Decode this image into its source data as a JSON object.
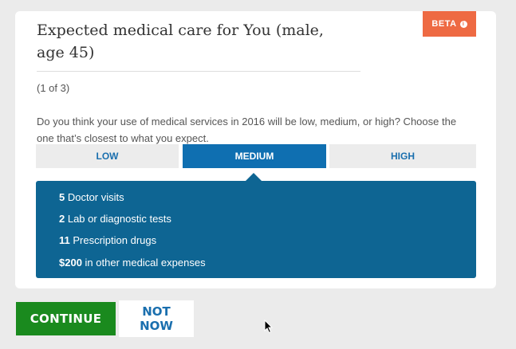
{
  "card": {
    "badge": "BETA",
    "badge_color": "#ee6a43",
    "title": "Expected medical care for You (male, age 45)",
    "step": "(1 of 3)",
    "question": "Do you think your use of medical services in 2016 will be low, medium, or high? Choose the one that’s closest to what you expect.",
    "options": [
      {
        "label": "LOW",
        "selected": false
      },
      {
        "label": "MEDIUM",
        "selected": true
      },
      {
        "label": "HIGH",
        "selected": false
      }
    ],
    "details": [
      {
        "value": "5",
        "text": " Doctor visits"
      },
      {
        "value": "2",
        "text": " Lab or diagnostic tests"
      },
      {
        "value": "11",
        "text": " Prescription drugs"
      },
      {
        "value": "$200",
        "text": " in other medical expenses"
      }
    ]
  },
  "actions": {
    "continue": "CONTINUE",
    "not_now": "NOT NOW"
  },
  "colors": {
    "primary": "#0f6fb1",
    "panel": "#0e6593",
    "continue": "#1a8a1e"
  }
}
